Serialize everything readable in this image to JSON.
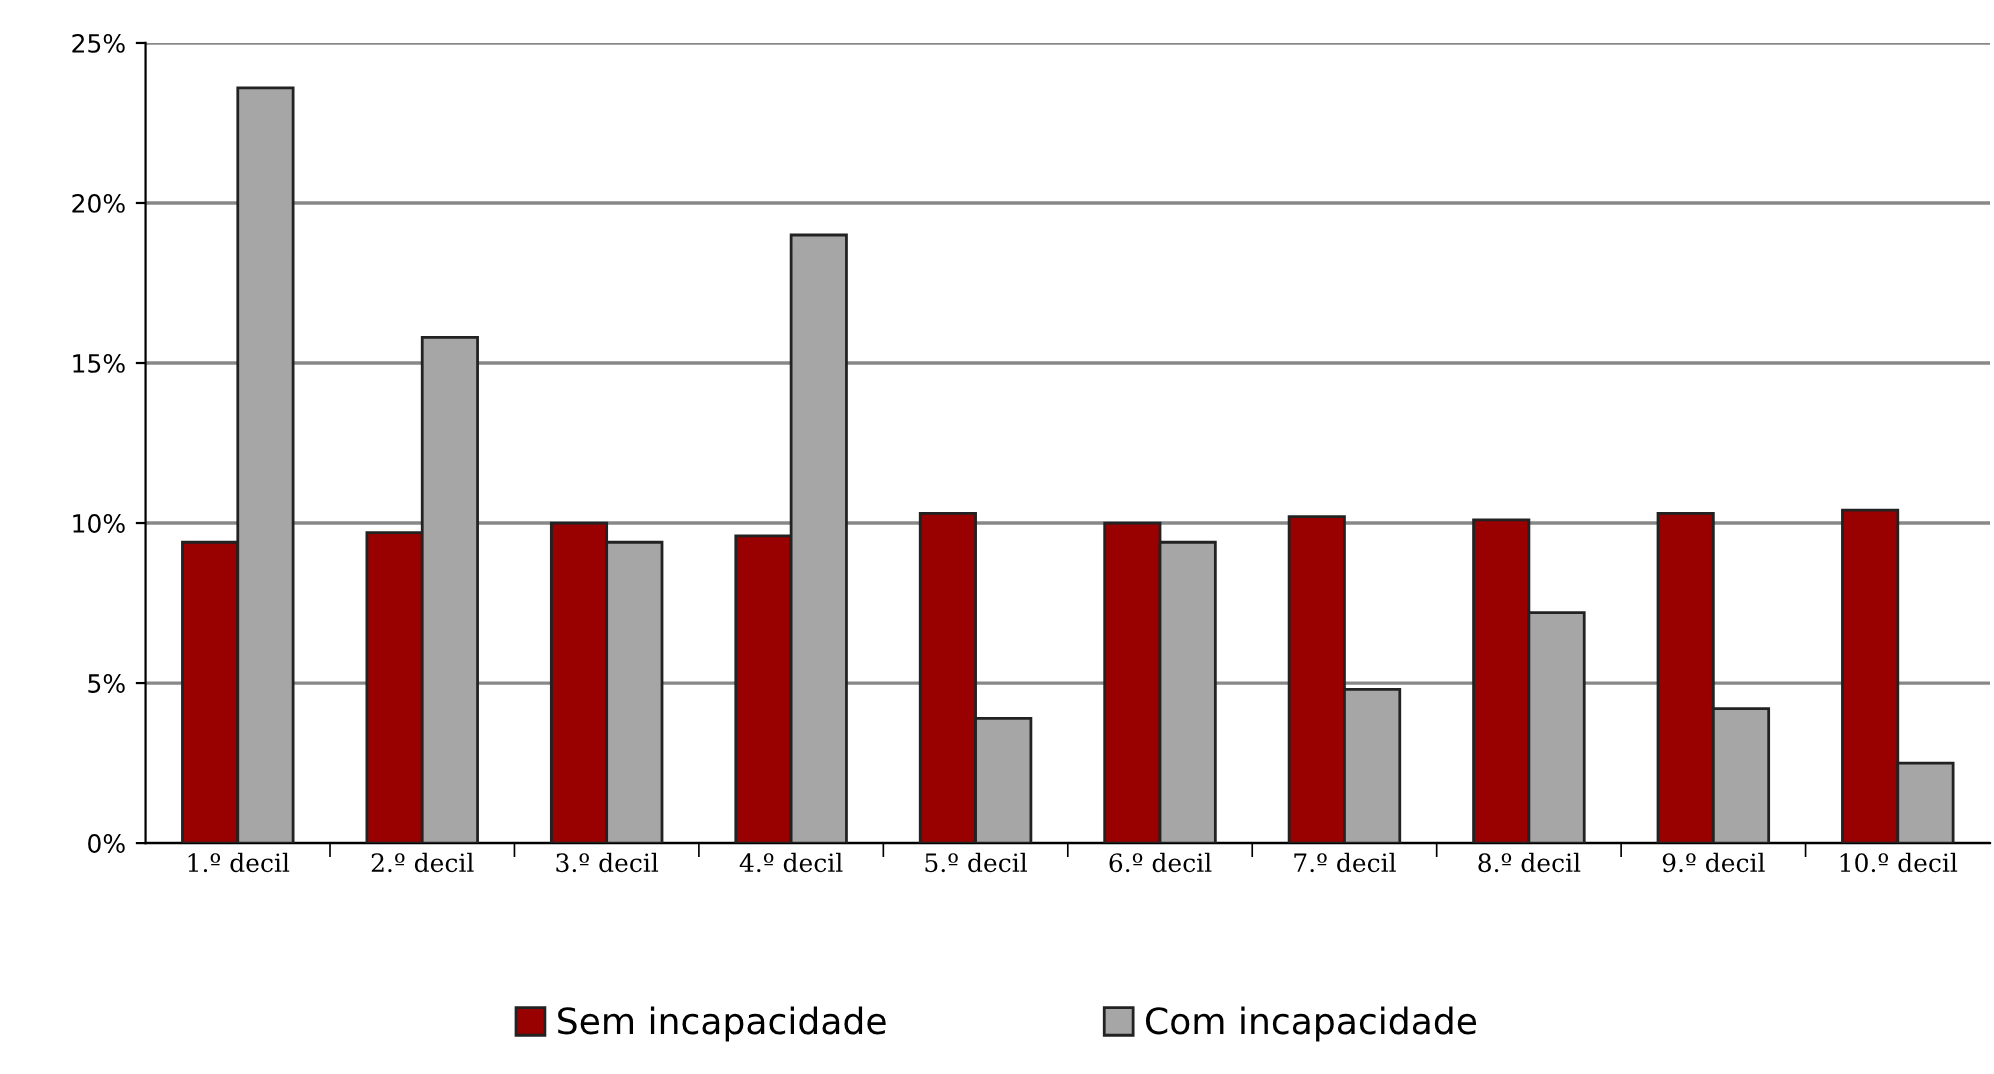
{
  "chart_data": {
    "type": "bar",
    "categories": [
      "1.º decil",
      "2.º decil",
      "3.º decil",
      "4.º decil",
      "5.º decil",
      "6.º decil",
      "7.º decil",
      "8.º decil",
      "9.º decil",
      "10.º decil"
    ],
    "series": [
      {
        "name": "Sem incapacidade",
        "color": "#990000",
        "values": [
          9.4,
          9.7,
          10.0,
          9.6,
          10.3,
          10.0,
          10.2,
          10.1,
          10.3,
          10.4
        ]
      },
      {
        "name": "Com incapacidade",
        "color": "#a6a6a6",
        "values": [
          23.6,
          15.8,
          9.4,
          19.0,
          3.9,
          9.4,
          4.8,
          7.2,
          4.2,
          2.5
        ]
      }
    ],
    "ylim": [
      0,
      25
    ],
    "yticks": [
      {
        "value": 0,
        "label": "0%"
      },
      {
        "value": 5,
        "label": "5%"
      },
      {
        "value": 10,
        "label": "10%"
      },
      {
        "value": 15,
        "label": "15%"
      },
      {
        "value": 20,
        "label": "20%"
      },
      {
        "value": 25,
        "label": "25%"
      }
    ],
    "grid": "y",
    "legend": "bottom"
  }
}
